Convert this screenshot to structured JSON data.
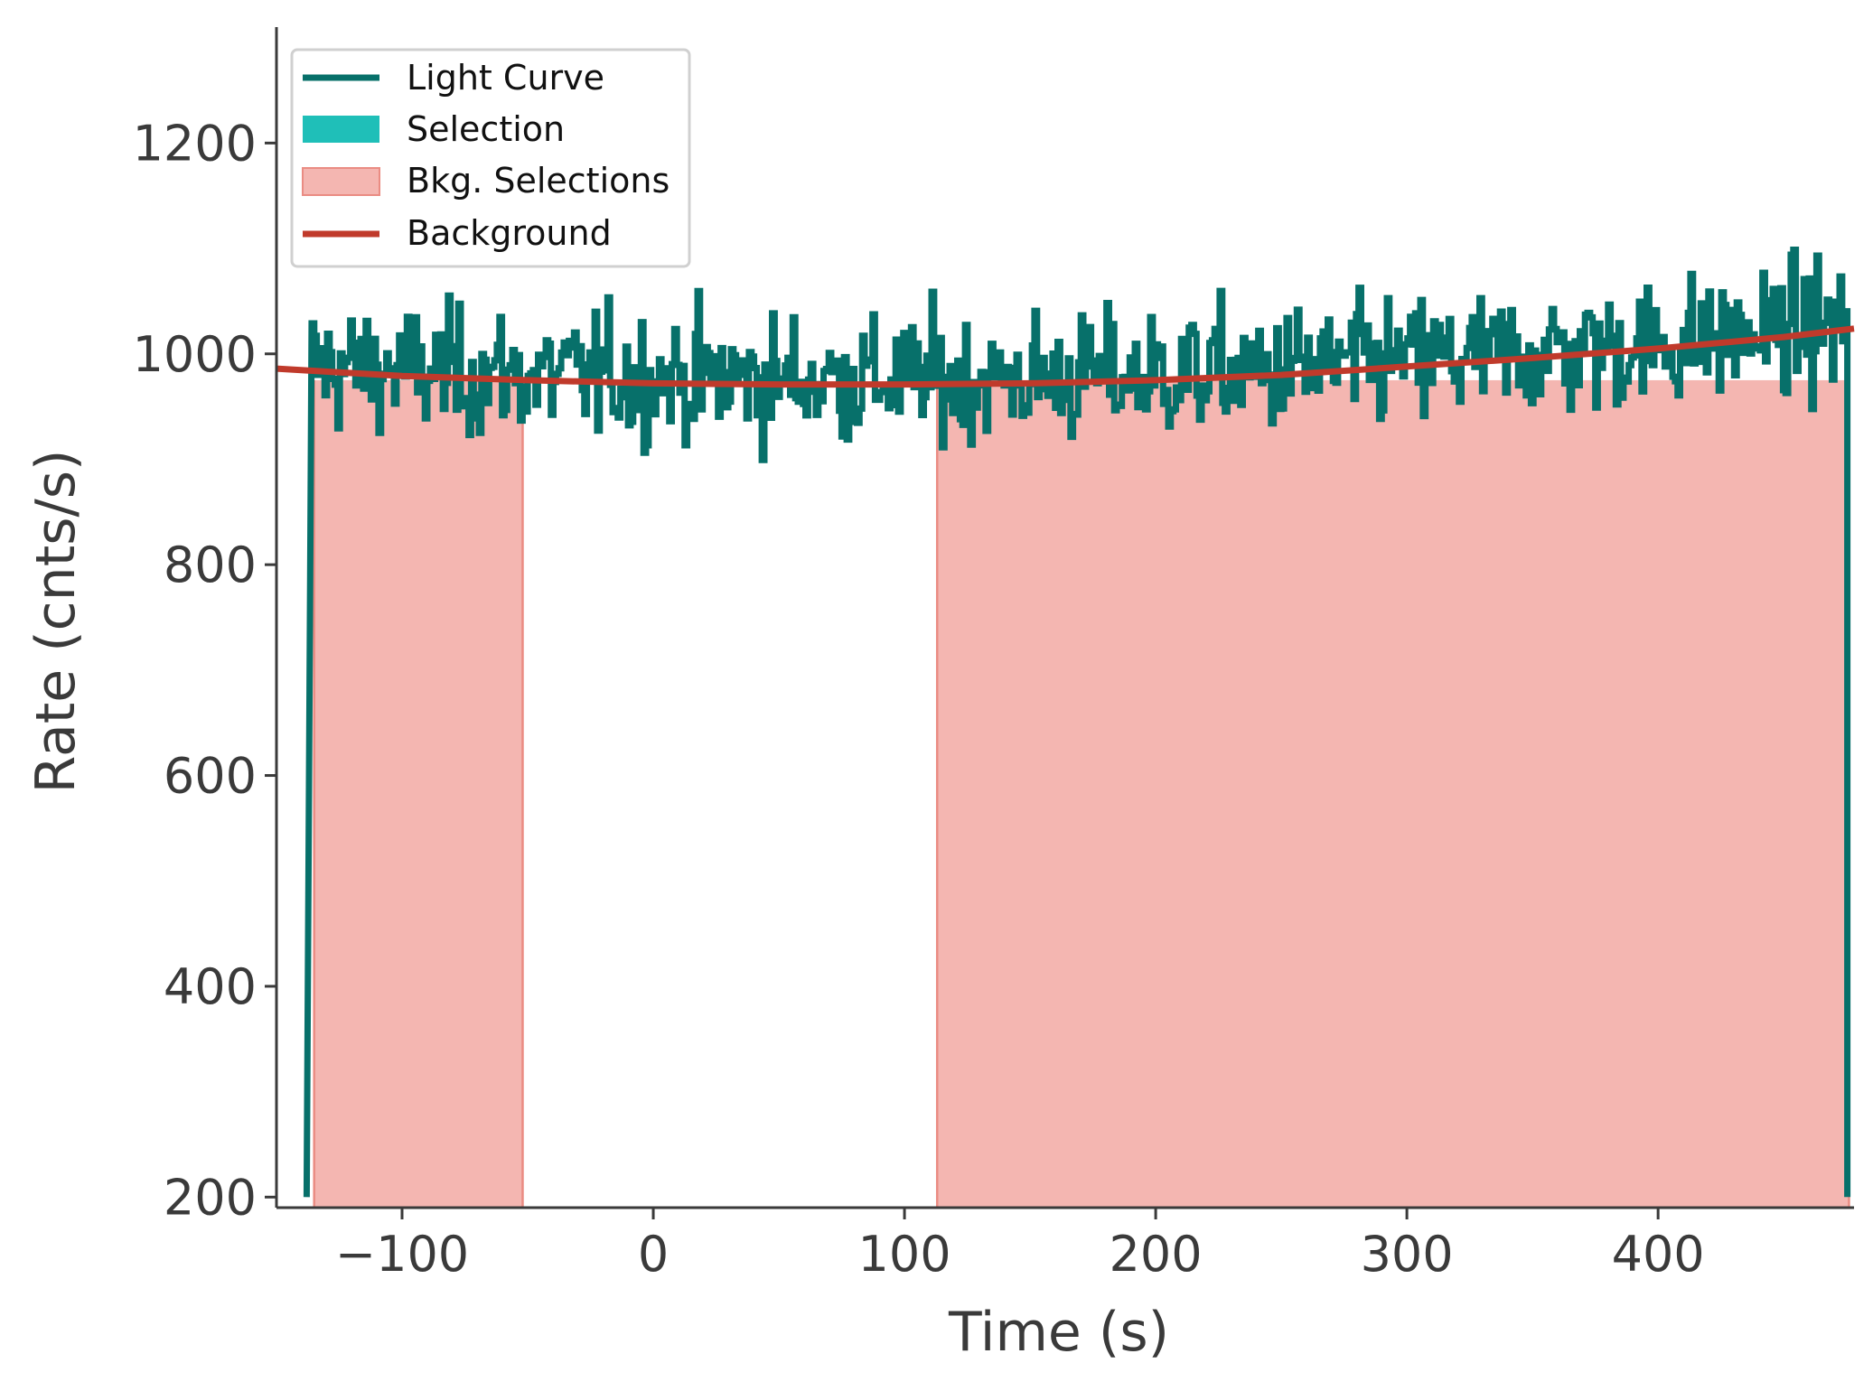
{
  "chart_data": {
    "type": "line",
    "title": "",
    "xlabel": "Time (s)",
    "ylabel": "Rate (cnts/s)",
    "xlim": [
      -150,
      478
    ],
    "ylim": [
      190,
      1310
    ],
    "xticks": [
      -100,
      0,
      100,
      200,
      300,
      400
    ],
    "xtick_labels": [
      "−100",
      "0",
      "100",
      "200",
      "300",
      "400"
    ],
    "yticks": [
      200,
      400,
      600,
      800,
      1000,
      1200
    ],
    "ytick_labels": [
      "200",
      "400",
      "600",
      "800",
      "1000",
      "1200"
    ],
    "grid": false,
    "legend_position": "top-left",
    "light_curve": {
      "name": "Light Curve",
      "color": "#07706a",
      "t_start": -138,
      "t_end": 476,
      "bin_width": 1.024,
      "baseline_rate": 200,
      "mean_rate_approx": 985,
      "noise_amplitude_approx": 30
    },
    "selection": {
      "name": "Selection",
      "color": "#1fbfb8",
      "intervals": []
    },
    "bkg_selections": {
      "name": "Bkg. Selections",
      "fill_color": "#f4b6b1",
      "edge_color": "#ea8c83",
      "intervals": [
        [
          -135,
          -52
        ],
        [
          113,
          476
        ]
      ]
    },
    "background": {
      "name": "Background",
      "color": "#c03a2b",
      "x": [
        -150,
        -100,
        -50,
        0,
        50,
        100,
        150,
        200,
        250,
        300,
        350,
        400,
        450,
        478
      ],
      "values": [
        986,
        979,
        975,
        972,
        971,
        971,
        972,
        975,
        980,
        988,
        996,
        1005,
        1016,
        1024
      ]
    }
  }
}
